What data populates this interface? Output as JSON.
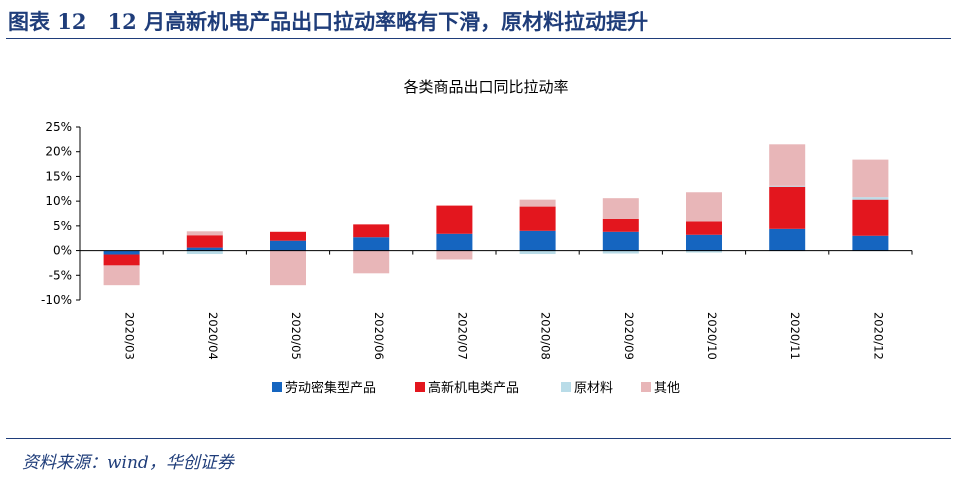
{
  "figure": {
    "title": "图表 12　12 月高新机电产品出口拉动率略有下滑，原材料拉动提升",
    "source": "资料来源：wind，华创证券"
  },
  "chart_data": {
    "type": "bar",
    "stacked": true,
    "title": "各类商品出口同比拉动率",
    "categories": [
      "2020/03",
      "2020/04",
      "2020/05",
      "2020/06",
      "2020/07",
      "2020/08",
      "2020/09",
      "2020/10",
      "2020/11",
      "2020/12"
    ],
    "series": [
      {
        "name": "劳动密集型产品",
        "color": "#1565c0",
        "values": [
          -0.8,
          0.6,
          2.0,
          2.7,
          3.4,
          4.0,
          3.8,
          3.2,
          4.4,
          3.0
        ]
      },
      {
        "name": "高新机电类产品",
        "color": "#e3161e",
        "values": [
          -2.2,
          2.5,
          1.8,
          2.6,
          5.7,
          4.9,
          2.6,
          2.7,
          8.5,
          7.3
        ]
      },
      {
        "name": "原材料",
        "color": "#b9dce8",
        "values": [
          0.0,
          -0.7,
          0.0,
          0.0,
          0.0,
          -0.7,
          -0.6,
          -0.4,
          0.2,
          0.5
        ]
      },
      {
        "name": "其他",
        "color": "#e8b6b8",
        "values": [
          -4.0,
          0.8,
          -7.0,
          -4.6,
          -1.8,
          1.4,
          4.2,
          5.9,
          8.4,
          7.6
        ]
      }
    ],
    "yticks": [
      "25%",
      "20%",
      "15%",
      "10%",
      "5%",
      "0%",
      "-5%",
      "-10%"
    ],
    "ylim": [
      -10,
      25
    ],
    "grid": false,
    "legend_position": "bottom"
  }
}
